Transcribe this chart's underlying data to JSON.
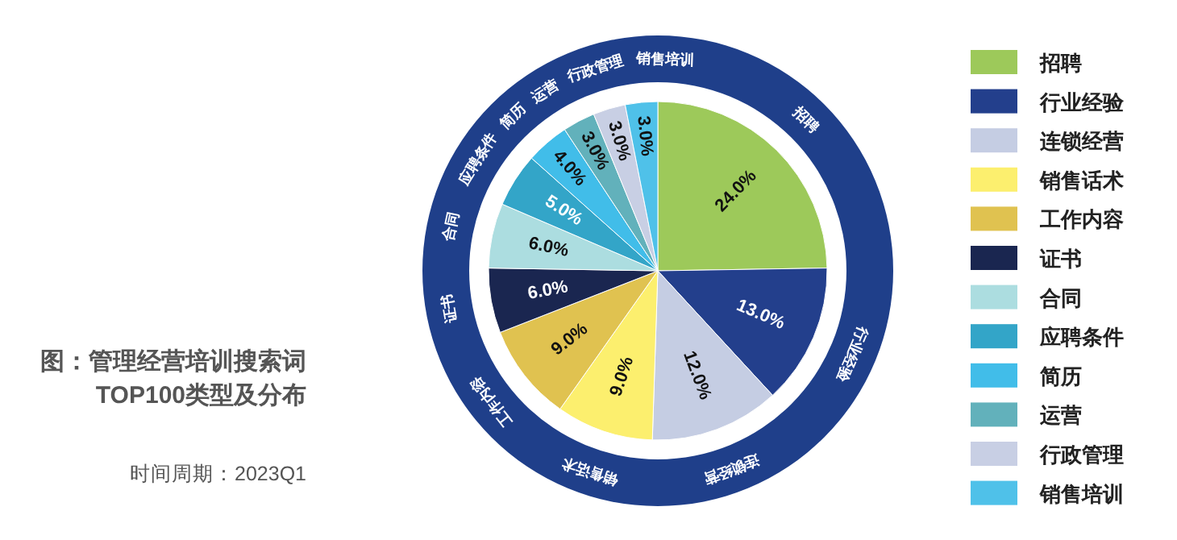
{
  "chart_data": {
    "type": "pie",
    "title": "图：管理经营培训搜索词TOP100类型及分布",
    "categories": [
      "招聘",
      "行业经验",
      "连锁经营",
      "销售话术",
      "工作内容",
      "证书",
      "合同",
      "应聘条件",
      "简历",
      "运营",
      "行政管理",
      "销售培训"
    ],
    "values": [
      24.0,
      13.0,
      12.0,
      9.0,
      9.0,
      6.0,
      6.0,
      5.0,
      4.0,
      3.0,
      3.0,
      3.0
    ],
    "value_labels": [
      "24.0%",
      "13.0%",
      "12.0%",
      "9.0%",
      "9.0%",
      "6.0%",
      "6.0%",
      "5.0%",
      "4.0%",
      "3.0%",
      "3.0%",
      "3.0%"
    ],
    "colors": [
      "#9dc95a",
      "#233f8c",
      "#c5cde3",
      "#fcef6e",
      "#e0c250",
      "#1a2650",
      "#acdde0",
      "#33a5c8",
      "#41bde9",
      "#62b1bb",
      "#c8cfe4",
      "#4fc1e9"
    ],
    "legend": "right",
    "annotations": [
      "时间周期：2023Q1"
    ]
  }
}
